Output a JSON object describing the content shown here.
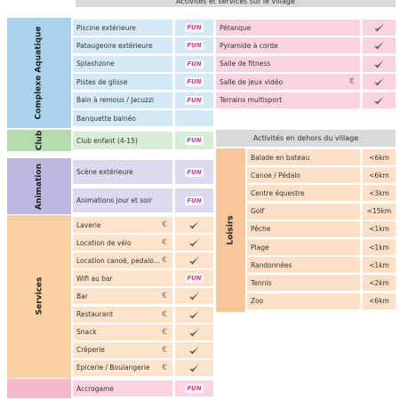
{
  "header": {
    "title": "Activités et services sur le village"
  },
  "fun_icon": "FUN",
  "groups": [
    {
      "label": "Complexe Aquatique",
      "color": "#a9d4ec",
      "row_color": "#d3eaf6",
      "rows": [
        {
          "name": "Piscine extérieure",
          "fun": true
        },
        {
          "name": "Pataugeoire extérieure",
          "fun": true
        },
        {
          "name": "Splashzone",
          "fun": true
        },
        {
          "name": "Pistes de glisse",
          "fun": true
        },
        {
          "name": "Bain à remous / Jacuzzi",
          "fun": true
        },
        {
          "name": "Banquette balnéo"
        }
      ]
    },
    {
      "label": "Club",
      "color": "#b5dcb0",
      "row_color": "#d8edd5",
      "rows": [
        {
          "name": "Club enfant (4-15)",
          "fun": true
        }
      ]
    },
    {
      "label": "Animation",
      "color": "#bcb8e0",
      "row_color": "#dcdaf0",
      "rows": [
        {
          "name": "Scène extérieure",
          "fun": true
        },
        {
          "name": "Animations jour et soir",
          "fun": true
        }
      ]
    },
    {
      "label": "Services",
      "color": "#fbd0a0",
      "row_color": "#fde3c8",
      "rows": [
        {
          "name": "Laverie",
          "price": "€",
          "check": true
        },
        {
          "name": "Location de vélo",
          "price": "€",
          "check": true
        },
        {
          "name": "Location canoë, pedalo...",
          "price": "€",
          "check": true
        },
        {
          "name": "Wifi au bar",
          "fun": true
        },
        {
          "name": "Bar",
          "price": "€",
          "check": true
        },
        {
          "name": "Restaurant",
          "price": "€",
          "check": true
        },
        {
          "name": "Snack",
          "price": "€",
          "check": true
        },
        {
          "name": "Crêperie",
          "price": "€",
          "check": true
        },
        {
          "name": "Epicerie / Boulangerie",
          "price": "€",
          "check": true
        }
      ]
    },
    {
      "color": "#f6b8cc",
      "row_color": "#fad3e0",
      "rows": [
        {
          "name": "Accrogame",
          "fun": true
        }
      ]
    }
  ],
  "right_table": {
    "color": "#fad3e0",
    "rows": [
      {
        "name": "Pétanque",
        "check": true
      },
      {
        "name": "Pyramide à corde",
        "check": true
      },
      {
        "name": "Salle de fitness",
        "check": true
      },
      {
        "name": "Salle de jeux vidéo",
        "price": "€",
        "check": true
      },
      {
        "name": "Terrains multisport",
        "check": true
      }
    ]
  },
  "outside": {
    "title": "Activités en dehors du village",
    "label": "Loisirs",
    "color": "#f8c69a",
    "row_color": "#fde0c6",
    "rows": [
      {
        "name": "Balade en bateau",
        "distance": "<6km"
      },
      {
        "name": "Canoe / Pédalo",
        "distance": "<6km"
      },
      {
        "name": "Centre équestre",
        "distance": "<3km"
      },
      {
        "name": "Golf",
        "distance": "<15km"
      },
      {
        "name": "Pêche",
        "distance": "<1km"
      },
      {
        "name": "Plage",
        "distance": "<1km"
      },
      {
        "name": "Randonnées",
        "distance": "<1km"
      },
      {
        "name": "Tennis",
        "distance": "<2km"
      },
      {
        "name": "Zoo",
        "distance": "<6km"
      }
    ]
  }
}
